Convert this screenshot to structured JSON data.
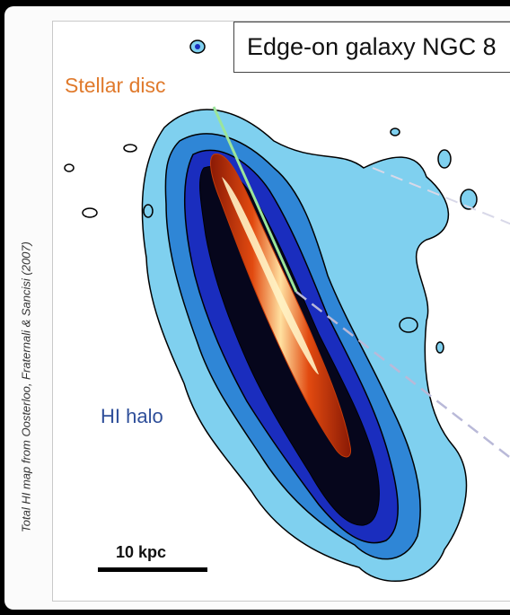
{
  "title": "Edge-on galaxy NGC 8",
  "labels": {
    "stellar_disc": "Stellar disc",
    "hi_halo": "HI halo",
    "scale_bar": "10 kpc"
  },
  "credit": "Total HI map from Oosterloo, Fraternali & Sancisi (2007)",
  "colors": {
    "stellar_disc_label": "#e07a2c",
    "hi_halo_label": "#2f4f9a",
    "halo_outer": "#7fd0ef",
    "halo_mid": "#2f86d6",
    "halo_inner": "#1a2dbe",
    "core": "#06061c",
    "disc_bright": "#ffd070",
    "disc_edge": "#e24a10",
    "disc_axis_line": "#9be59b",
    "perpendicular_line": "#b9b9d8"
  }
}
